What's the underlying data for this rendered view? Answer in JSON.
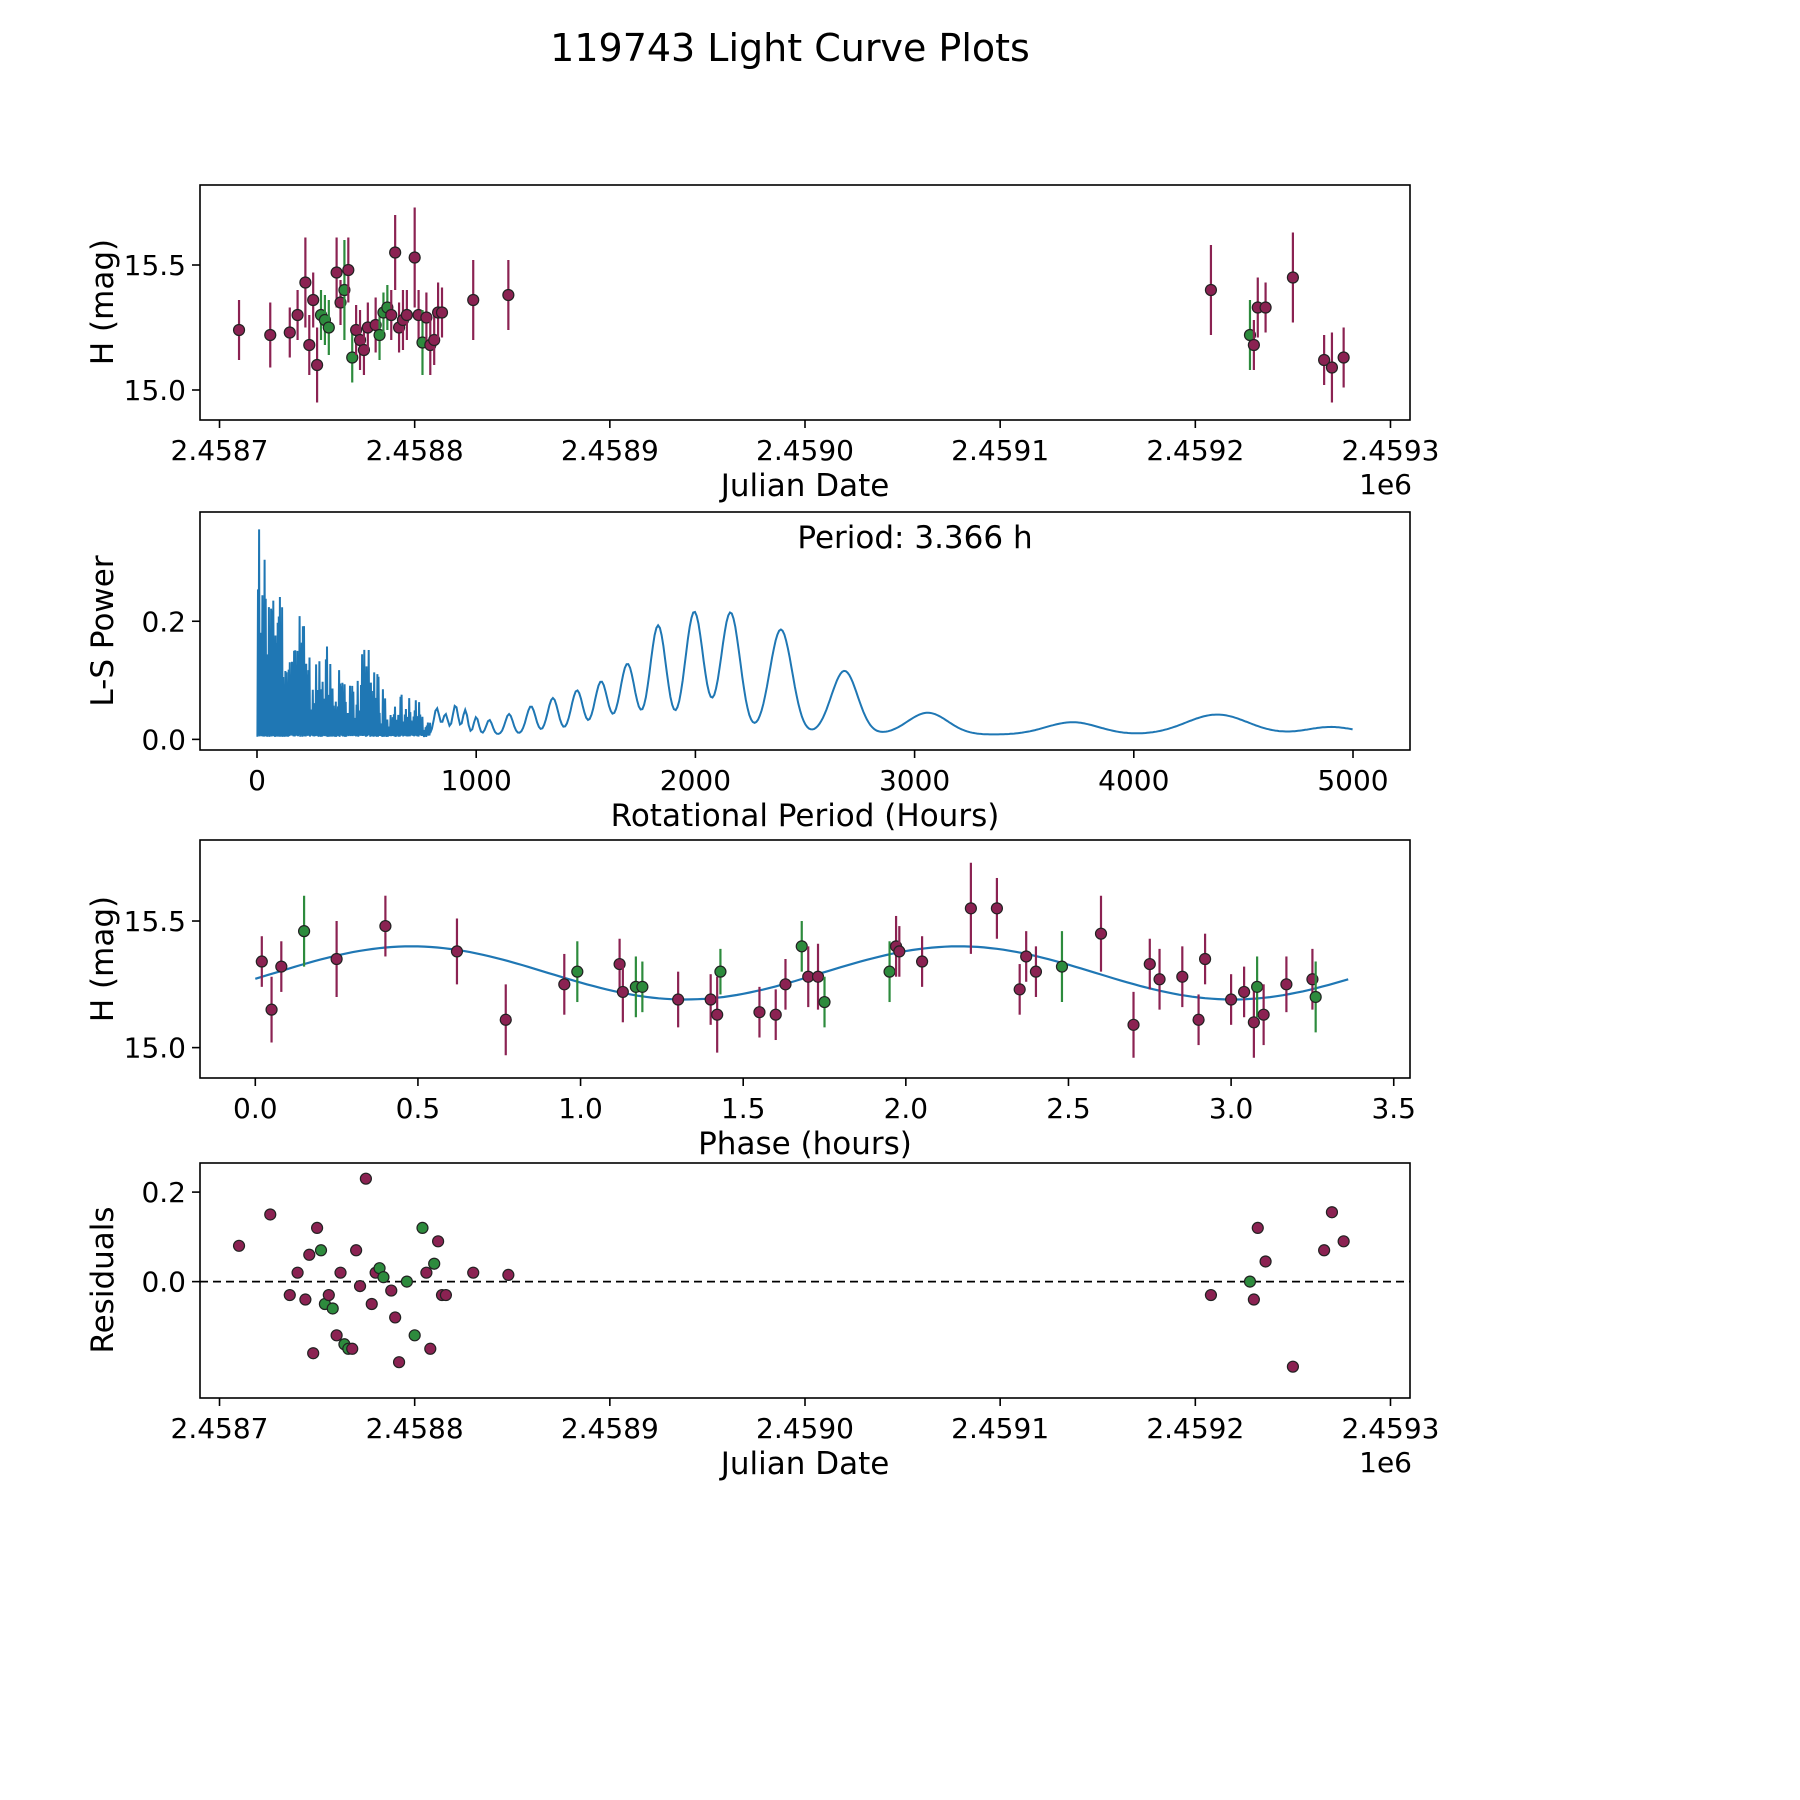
{
  "title": "119743 Light Curve Plots",
  "colors": {
    "maroon": "#8b2252",
    "green": "#2d8b3d",
    "blue": "#1f77b4",
    "edge": "#222222"
  },
  "chart_data": [
    {
      "id": "light-curve",
      "type": "scatter",
      "xlabel": "Julian Date",
      "ylabel": "H (mag)",
      "x_offset_label": "1e6",
      "xlim": [
        2.45869,
        2.45931
      ],
      "xticks": [
        2.4587,
        2.4588,
        2.4589,
        2.459,
        2.4591,
        2.4592,
        2.4593
      ],
      "xtick_labels": [
        "2.4587",
        "2.4588",
        "2.4589",
        "2.4590",
        "2.4591",
        "2.4592",
        "2.4593"
      ],
      "ylim": [
        14.88,
        15.82
      ],
      "yticks": [
        15.0,
        15.5
      ],
      "ytick_labels": [
        "15.0",
        "15.5"
      ],
      "points": [
        [
          2.45871,
          15.24,
          0.12,
          "m"
        ],
        [
          2.458726,
          15.22,
          0.13,
          "m"
        ],
        [
          2.458736,
          15.23,
          0.1,
          "m"
        ],
        [
          2.45874,
          15.3,
          0.1,
          "m"
        ],
        [
          2.458744,
          15.43,
          0.18,
          "m"
        ],
        [
          2.458746,
          15.18,
          0.12,
          "m"
        ],
        [
          2.458748,
          15.36,
          0.11,
          "m"
        ],
        [
          2.45875,
          15.1,
          0.15,
          "m"
        ],
        [
          2.458752,
          15.3,
          0.1,
          "g"
        ],
        [
          2.458754,
          15.28,
          0.1,
          "g"
        ],
        [
          2.458756,
          15.25,
          0.11,
          "g"
        ],
        [
          2.45876,
          15.47,
          0.14,
          "m"
        ],
        [
          2.458762,
          15.35,
          0.09,
          "m"
        ],
        [
          2.458764,
          15.4,
          0.2,
          "g"
        ],
        [
          2.458766,
          15.48,
          0.13,
          "m"
        ],
        [
          2.458768,
          15.13,
          0.1,
          "g"
        ],
        [
          2.45877,
          15.24,
          0.1,
          "m"
        ],
        [
          2.458772,
          15.2,
          0.12,
          "m"
        ],
        [
          2.458774,
          15.16,
          0.1,
          "m"
        ],
        [
          2.458776,
          15.25,
          0.1,
          "m"
        ],
        [
          2.45878,
          15.26,
          0.11,
          "m"
        ],
        [
          2.458782,
          15.22,
          0.1,
          "g"
        ],
        [
          2.458784,
          15.31,
          0.08,
          "g"
        ],
        [
          2.458786,
          15.33,
          0.09,
          "g"
        ],
        [
          2.458788,
          15.3,
          0.1,
          "m"
        ],
        [
          2.45879,
          15.55,
          0.15,
          "m"
        ],
        [
          2.458792,
          15.25,
          0.1,
          "m"
        ],
        [
          2.458794,
          15.28,
          0.12,
          "m"
        ],
        [
          2.458796,
          15.3,
          0.1,
          "m"
        ],
        [
          2.4588,
          15.53,
          0.2,
          "m"
        ],
        [
          2.458802,
          15.3,
          0.1,
          "m"
        ],
        [
          2.458804,
          15.19,
          0.13,
          "g"
        ],
        [
          2.458806,
          15.29,
          0.1,
          "m"
        ],
        [
          2.458808,
          15.18,
          0.12,
          "m"
        ],
        [
          2.45881,
          15.2,
          0.1,
          "m"
        ],
        [
          2.458812,
          15.31,
          0.12,
          "m"
        ],
        [
          2.458814,
          15.31,
          0.1,
          "m"
        ],
        [
          2.45883,
          15.36,
          0.16,
          "m"
        ],
        [
          2.458848,
          15.38,
          0.14,
          "m"
        ],
        [
          2.459208,
          15.4,
          0.18,
          "m"
        ],
        [
          2.459228,
          15.22,
          0.14,
          "g"
        ],
        [
          2.45923,
          15.18,
          0.1,
          "m"
        ],
        [
          2.459232,
          15.33,
          0.12,
          "m"
        ],
        [
          2.459236,
          15.33,
          0.1,
          "m"
        ],
        [
          2.45925,
          15.45,
          0.18,
          "m"
        ],
        [
          2.459266,
          15.12,
          0.1,
          "m"
        ],
        [
          2.45927,
          15.09,
          0.14,
          "m"
        ],
        [
          2.459276,
          15.13,
          0.12,
          "m"
        ]
      ]
    },
    {
      "id": "periodogram",
      "type": "line",
      "xlabel": "Rotational Period (Hours)",
      "ylabel": "L-S Power",
      "annotation": "Period: 3.366 h",
      "best_period_hours": 3.366,
      "xlim": [
        -260,
        5260
      ],
      "xticks": [
        0,
        1000,
        2000,
        3000,
        4000,
        5000
      ],
      "xtick_labels": [
        "0",
        "1000",
        "2000",
        "3000",
        "4000",
        "5000"
      ],
      "ylim": [
        -0.018,
        0.385
      ],
      "yticks": [
        0.0,
        0.2
      ],
      "ytick_labels": [
        "0.0",
        "0.2"
      ],
      "periodogram": {
        "noise_x": [
          2,
          790
        ],
        "noise_step": 5,
        "baseline": 0.004,
        "x_end": 5000,
        "envelope": [
          [
            2,
            0.37
          ],
          [
            15,
            0.34
          ],
          [
            30,
            0.31
          ],
          [
            50,
            0.28
          ],
          [
            70,
            0.26
          ],
          [
            90,
            0.27
          ],
          [
            110,
            0.24
          ],
          [
            140,
            0.21
          ],
          [
            170,
            0.19
          ],
          [
            200,
            0.22
          ],
          [
            230,
            0.16
          ],
          [
            260,
            0.13
          ],
          [
            290,
            0.15
          ],
          [
            320,
            0.16
          ],
          [
            350,
            0.11
          ],
          [
            380,
            0.12
          ],
          [
            410,
            0.1
          ],
          [
            440,
            0.09
          ],
          [
            460,
            0.13
          ],
          [
            480,
            0.2
          ],
          [
            500,
            0.21
          ],
          [
            515,
            0.19
          ],
          [
            530,
            0.16
          ],
          [
            550,
            0.13
          ],
          [
            570,
            0.1
          ],
          [
            590,
            0.07
          ],
          [
            610,
            0.05
          ],
          [
            640,
            0.06
          ],
          [
            665,
            0.09
          ],
          [
            690,
            0.1
          ],
          [
            715,
            0.09
          ],
          [
            740,
            0.06
          ],
          [
            765,
            0.05
          ],
          [
            790,
            0.04
          ]
        ],
        "humps": [
          [
            820,
            0.045,
            18
          ],
          [
            860,
            0.035,
            16
          ],
          [
            905,
            0.05,
            18
          ],
          [
            950,
            0.042,
            16
          ],
          [
            1000,
            0.03,
            16
          ],
          [
            1060,
            0.025,
            20
          ],
          [
            1150,
            0.035,
            25
          ],
          [
            1250,
            0.048,
            30
          ],
          [
            1350,
            0.062,
            34
          ],
          [
            1460,
            0.075,
            38
          ],
          [
            1570,
            0.09,
            42
          ],
          [
            1690,
            0.12,
            48
          ],
          [
            1830,
            0.185,
            52
          ],
          [
            1995,
            0.208,
            58
          ],
          [
            2160,
            0.207,
            62
          ],
          [
            2390,
            0.178,
            72
          ],
          [
            2680,
            0.108,
            85
          ],
          [
            3060,
            0.037,
            130
          ],
          [
            3720,
            0.021,
            170
          ],
          [
            4380,
            0.034,
            200
          ],
          [
            4900,
            0.013,
            160
          ]
        ]
      }
    },
    {
      "id": "phase-curve",
      "type": "scatter_fit",
      "xlabel": "Phase (hours)",
      "ylabel": "H (mag)",
      "xlim": [
        -0.17,
        3.55
      ],
      "xticks": [
        0,
        0.5,
        1.0,
        1.5,
        2.0,
        2.5,
        3.0,
        3.5
      ],
      "xtick_labels": [
        "0.0",
        "0.5",
        "1.0",
        "1.5",
        "2.0",
        "2.5",
        "3.0",
        "3.5"
      ],
      "ylim": [
        14.88,
        15.82
      ],
      "yticks": [
        15.0,
        15.5
      ],
      "ytick_labels": [
        "15.0",
        "15.5"
      ],
      "fit": {
        "mean": 15.295,
        "amplitude": 0.105,
        "period_hours": 1.683,
        "phase_of_max": 0.48,
        "x_start": 0.0,
        "x_end": 3.37
      },
      "points": [
        [
          0.02,
          15.34,
          0.1,
          "m"
        ],
        [
          0.05,
          15.15,
          0.13,
          "m"
        ],
        [
          0.08,
          15.32,
          0.1,
          "m"
        ],
        [
          0.15,
          15.46,
          0.14,
          "g"
        ],
        [
          0.25,
          15.35,
          0.15,
          "m"
        ],
        [
          0.4,
          15.48,
          0.12,
          "m"
        ],
        [
          0.62,
          15.38,
          0.13,
          "m"
        ],
        [
          0.77,
          15.11,
          0.14,
          "m"
        ],
        [
          0.95,
          15.25,
          0.12,
          "m"
        ],
        [
          0.99,
          15.3,
          0.12,
          "g"
        ],
        [
          1.12,
          15.33,
          0.1,
          "m"
        ],
        [
          1.13,
          15.22,
          0.12,
          "m"
        ],
        [
          1.17,
          15.24,
          0.12,
          "g"
        ],
        [
          1.19,
          15.24,
          0.1,
          "g"
        ],
        [
          1.3,
          15.19,
          0.11,
          "m"
        ],
        [
          1.4,
          15.19,
          0.1,
          "m"
        ],
        [
          1.42,
          15.13,
          0.15,
          "m"
        ],
        [
          1.43,
          15.3,
          0.09,
          "g"
        ],
        [
          1.55,
          15.14,
          0.1,
          "m"
        ],
        [
          1.6,
          15.13,
          0.1,
          "m"
        ],
        [
          1.63,
          15.25,
          0.1,
          "m"
        ],
        [
          1.68,
          15.4,
          0.1,
          "g"
        ],
        [
          1.7,
          15.28,
          0.12,
          "m"
        ],
        [
          1.73,
          15.28,
          0.13,
          "m"
        ],
        [
          1.75,
          15.18,
          0.1,
          "g"
        ],
        [
          1.95,
          15.3,
          0.12,
          "g"
        ],
        [
          1.97,
          15.4,
          0.12,
          "m"
        ],
        [
          1.98,
          15.38,
          0.1,
          "m"
        ],
        [
          2.05,
          15.34,
          0.1,
          "m"
        ],
        [
          2.2,
          15.55,
          0.18,
          "m"
        ],
        [
          2.28,
          15.55,
          0.12,
          "m"
        ],
        [
          2.35,
          15.23,
          0.1,
          "m"
        ],
        [
          2.37,
          15.36,
          0.1,
          "m"
        ],
        [
          2.4,
          15.3,
          0.1,
          "m"
        ],
        [
          2.48,
          15.32,
          0.14,
          "g"
        ],
        [
          2.6,
          15.45,
          0.15,
          "m"
        ],
        [
          2.7,
          15.09,
          0.13,
          "m"
        ],
        [
          2.75,
          15.33,
          0.1,
          "m"
        ],
        [
          2.78,
          15.27,
          0.12,
          "m"
        ],
        [
          2.85,
          15.28,
          0.12,
          "m"
        ],
        [
          2.9,
          15.11,
          0.1,
          "m"
        ],
        [
          2.92,
          15.35,
          0.1,
          "m"
        ],
        [
          3.0,
          15.19,
          0.1,
          "m"
        ],
        [
          3.04,
          15.22,
          0.1,
          "m"
        ],
        [
          3.07,
          15.1,
          0.14,
          "m"
        ],
        [
          3.08,
          15.24,
          0.12,
          "g"
        ],
        [
          3.1,
          15.13,
          0.12,
          "m"
        ],
        [
          3.17,
          15.25,
          0.11,
          "m"
        ],
        [
          3.25,
          15.27,
          0.12,
          "m"
        ],
        [
          3.26,
          15.2,
          0.14,
          "g"
        ]
      ]
    },
    {
      "id": "residuals",
      "type": "scatter",
      "xlabel": "Julian Date",
      "ylabel": "Residuals",
      "x_offset_label": "1e6",
      "xlim": [
        2.45869,
        2.45931
      ],
      "xticks": [
        2.4587,
        2.4588,
        2.4589,
        2.459,
        2.4591,
        2.4592,
        2.4593
      ],
      "xtick_labels": [
        "2.4587",
        "2.4588",
        "2.4589",
        "2.4590",
        "2.4591",
        "2.4592",
        "2.4593"
      ],
      "ylim": [
        -0.26,
        0.265
      ],
      "yticks": [
        0.0,
        0.2
      ],
      "ytick_labels": [
        "0.0",
        "0.2"
      ],
      "hline": 0,
      "points": [
        [
          2.45871,
          0.08,
          0,
          "m"
        ],
        [
          2.458726,
          0.15,
          0,
          "m"
        ],
        [
          2.458736,
          -0.03,
          0,
          "m"
        ],
        [
          2.45874,
          0.02,
          0,
          "m"
        ],
        [
          2.458744,
          -0.04,
          0,
          "m"
        ],
        [
          2.458746,
          0.06,
          0,
          "m"
        ],
        [
          2.458748,
          -0.16,
          0,
          "m"
        ],
        [
          2.45875,
          0.12,
          0,
          "m"
        ],
        [
          2.458752,
          0.07,
          0,
          "g"
        ],
        [
          2.458754,
          -0.05,
          0,
          "g"
        ],
        [
          2.458756,
          -0.03,
          0,
          "m"
        ],
        [
          2.458758,
          -0.06,
          0,
          "g"
        ],
        [
          2.45876,
          -0.12,
          0,
          "m"
        ],
        [
          2.458762,
          0.02,
          0,
          "m"
        ],
        [
          2.458764,
          -0.14,
          0,
          "g"
        ],
        [
          2.458766,
          -0.15,
          0,
          "g"
        ],
        [
          2.458768,
          -0.15,
          0,
          "m"
        ],
        [
          2.45877,
          0.07,
          0,
          "m"
        ],
        [
          2.458772,
          -0.01,
          0,
          "m"
        ],
        [
          2.458775,
          0.23,
          0,
          "m"
        ],
        [
          2.458778,
          -0.05,
          0,
          "m"
        ],
        [
          2.45878,
          0.02,
          0,
          "m"
        ],
        [
          2.458782,
          0.03,
          0,
          "g"
        ],
        [
          2.458784,
          0.01,
          0,
          "g"
        ],
        [
          2.458788,
          -0.02,
          0,
          "m"
        ],
        [
          2.45879,
          -0.08,
          0,
          "m"
        ],
        [
          2.458792,
          -0.18,
          0,
          "m"
        ],
        [
          2.458796,
          0.0,
          0,
          "g"
        ],
        [
          2.4588,
          -0.12,
          0,
          "g"
        ],
        [
          2.458804,
          0.12,
          0,
          "g"
        ],
        [
          2.458806,
          0.02,
          0,
          "m"
        ],
        [
          2.458808,
          -0.15,
          0,
          "m"
        ],
        [
          2.45881,
          0.04,
          0,
          "g"
        ],
        [
          2.458812,
          0.09,
          0,
          "m"
        ],
        [
          2.458814,
          -0.03,
          0,
          "m"
        ],
        [
          2.458816,
          -0.03,
          0,
          "m"
        ],
        [
          2.45883,
          0.02,
          0,
          "m"
        ],
        [
          2.458848,
          0.015,
          0,
          "m"
        ],
        [
          2.459208,
          -0.03,
          0,
          "m"
        ],
        [
          2.459228,
          0.0,
          0,
          "g"
        ],
        [
          2.45923,
          -0.04,
          0,
          "m"
        ],
        [
          2.459232,
          0.12,
          0,
          "m"
        ],
        [
          2.459236,
          0.045,
          0,
          "m"
        ],
        [
          2.45925,
          -0.19,
          0,
          "m"
        ],
        [
          2.459266,
          0.07,
          0,
          "m"
        ],
        [
          2.45927,
          0.155,
          0,
          "m"
        ],
        [
          2.459276,
          0.09,
          0,
          "m"
        ]
      ]
    }
  ]
}
